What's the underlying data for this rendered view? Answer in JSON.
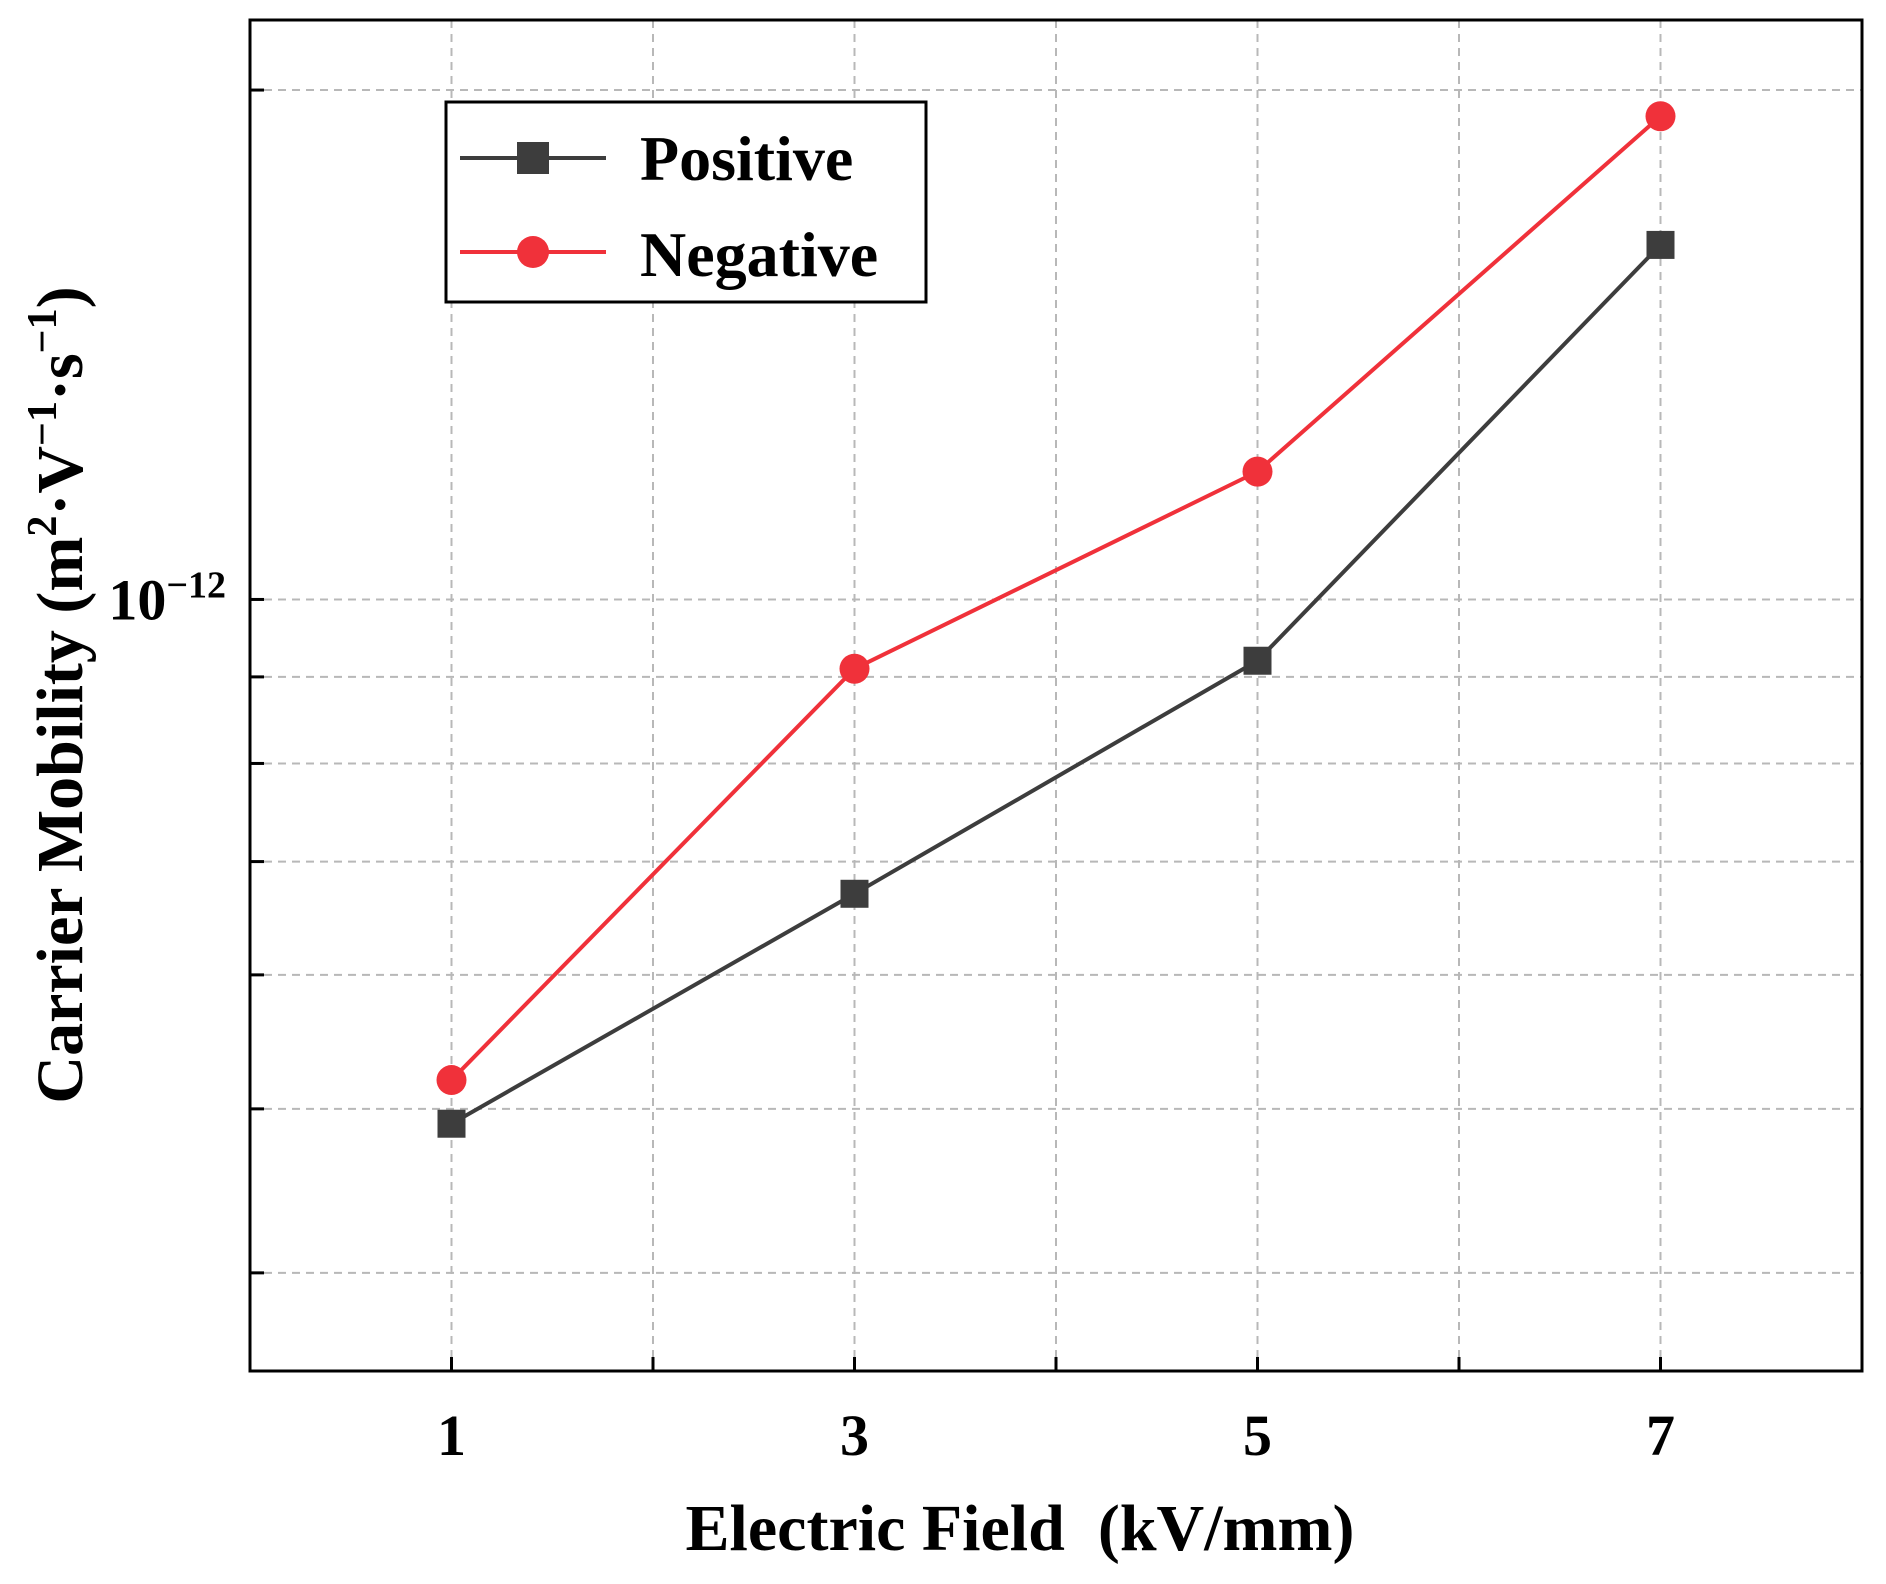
{
  "chart_data": {
    "type": "line",
    "title": "",
    "xlabel": "Electric Field  (kV/mm)",
    "ylabel": "Carrier Mobility (m²·V⁻¹·s⁻¹)",
    "ylabel_parts": {
      "main": "Carrier Mobility (m",
      "sup1": "2",
      "mid1": "·V",
      "sup2": "−1",
      "mid2": "·s",
      "sup3": "−1",
      "end": ")"
    },
    "x": [
      1,
      3,
      5,
      7
    ],
    "x_ticks": [
      "1",
      "3",
      "5",
      "7"
    ],
    "xlim": [
      0,
      8
    ],
    "yscale": "log",
    "ylim": [
      3.5e-13,
      2.2e-12
    ],
    "y_tick_label": {
      "base": "10",
      "exp": "−12",
      "value": 1e-12
    },
    "grid": true,
    "legend_position": "top-left",
    "series": [
      {
        "name": "Positive",
        "color": "#3d3d3d",
        "marker": "square",
        "values": [
          4.9e-13,
          6.7e-13,
          9.2e-13,
          1.62e-12
        ]
      },
      {
        "name": "Negative",
        "color": "#f0313a",
        "marker": "circle",
        "values": [
          5.2e-13,
          9.1e-13,
          1.19e-12,
          1.93e-12
        ]
      }
    ]
  }
}
